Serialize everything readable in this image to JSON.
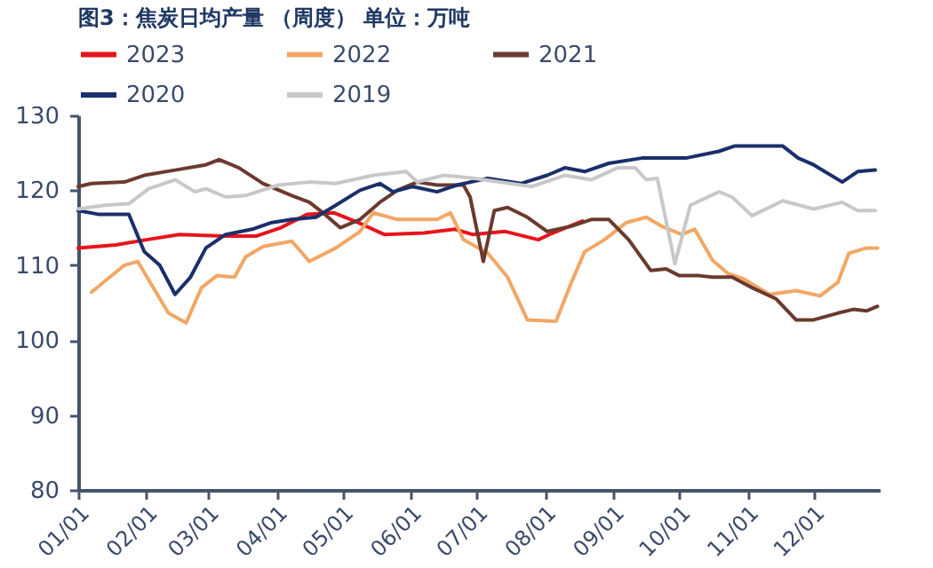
{
  "chart_data": {
    "type": "line",
    "title": "图3：焦炭日均产量 （周度）    单位：万吨",
    "xlim": [
      "--01-01",
      "--12-31"
    ],
    "xticks": [
      {
        "value": "--01-01",
        "label": "01/01"
      },
      {
        "value": "--02-01",
        "label": "02/01"
      },
      {
        "value": "--03-01",
        "label": "03/01"
      },
      {
        "value": "--04-01",
        "label": "04/01"
      },
      {
        "value": "--05-01",
        "label": "05/01"
      },
      {
        "value": "--06-01",
        "label": "06/01"
      },
      {
        "value": "--07-01",
        "label": "07/01"
      },
      {
        "value": "--08-01",
        "label": "08/01"
      },
      {
        "value": "--09-01",
        "label": "09/01"
      },
      {
        "value": "--10-01",
        "label": "10/01"
      },
      {
        "value": "--11-01",
        "label": "11/01"
      },
      {
        "value": "--12-01",
        "label": "12/01"
      }
    ],
    "ylim": [
      80,
      130
    ],
    "yticks": [
      80,
      90,
      100,
      110,
      120,
      130
    ],
    "grid": false,
    "legend": "top",
    "marker": "none",
    "line_style": "solid",
    "series": [
      {
        "name": "2023",
        "color": "#e8141b",
        "x": [
          "--01-01",
          "--01-18",
          "--02-01",
          "--02-16",
          "--03-08",
          "--03-23",
          "--04-03",
          "--04-15",
          "--04-27",
          "--05-08",
          "--05-20",
          "--06-07",
          "--06-21",
          "--06-29",
          "--07-14",
          "--07-29",
          "--08-03",
          "--08-18"
        ],
        "values": [
          112.3,
          112.7,
          113.4,
          114.1,
          113.9,
          113.9,
          115,
          116.8,
          117,
          115.7,
          114.1,
          114.3,
          114.8,
          114.1,
          114.5,
          113.4,
          114.1,
          115.9
        ]
      },
      {
        "name": "2022",
        "color": "#f2a765",
        "x": [
          "--01-07",
          "--01-22",
          "--01-28",
          "--02-11",
          "--02-19",
          "--02-26",
          "--03-05",
          "--03-13",
          "--03-18",
          "--03-26",
          "--04-08",
          "--04-16",
          "--04-28",
          "--05-09",
          "--05-15",
          "--05-26",
          "--06-13",
          "--06-19",
          "--06-25",
          "--07-06",
          "--07-15",
          "--07-24",
          "--08-06",
          "--08-13",
          "--08-19",
          "--08-28",
          "--09-07",
          "--09-16",
          "--09-23",
          "--10-02",
          "--10-08",
          "--10-16",
          "--10-23",
          "--10-30",
          "--11-11",
          "--11-23",
          "--12-04",
          "--12-12",
          "--12-17",
          "--12-25",
          "--12-30"
        ],
        "values": [
          106.4,
          110,
          110.5,
          103.6,
          102.3,
          107,
          108.6,
          108.4,
          111.1,
          112.5,
          113.2,
          110.5,
          112.3,
          114.5,
          117,
          116.1,
          116.1,
          117,
          113.4,
          111.6,
          108.4,
          102.7,
          102.5,
          107.7,
          111.8,
          113.4,
          115.7,
          116.4,
          115.2,
          114.1,
          114.8,
          110.7,
          108.9,
          108.2,
          106.1,
          106.6,
          105.9,
          107.7,
          111.6,
          112.3,
          112.3
        ]
      },
      {
        "name": "2021",
        "color": "#6b3a2e",
        "x": [
          "--01-01",
          "--01-07",
          "--01-22",
          "--01-31",
          "--02-14",
          "--02-28",
          "--03-06",
          "--03-15",
          "--03-26",
          "--04-08",
          "--04-16",
          "--04-23",
          "--04-30",
          "--05-09",
          "--05-18",
          "--05-26",
          "--06-04",
          "--06-13",
          "--06-25",
          "--06-28",
          "--07-04",
          "--07-09",
          "--07-15",
          "--07-24",
          "--08-02",
          "--08-13",
          "--08-22",
          "--08-30",
          "--09-08",
          "--09-18",
          "--09-25",
          "--10-01",
          "--10-10",
          "--10-16",
          "--10-25",
          "--11-03",
          "--11-14",
          "--11-23",
          "--12-01",
          "--12-12",
          "--12-19",
          "--12-25",
          "--12-30"
        ],
        "values": [
          120.5,
          120.9,
          121.1,
          122,
          122.7,
          123.4,
          124.1,
          123,
          120.9,
          119.3,
          118.4,
          116.8,
          115,
          116.1,
          118.4,
          120,
          121.1,
          120.7,
          120.7,
          119.1,
          110.5,
          117.3,
          117.7,
          116.4,
          114.5,
          115.2,
          116.1,
          116.1,
          113.4,
          109.3,
          109.5,
          108.6,
          108.6,
          108.4,
          108.4,
          107,
          105.5,
          102.7,
          102.7,
          103.6,
          104.1,
          103.9,
          104.5
        ]
      },
      {
        "name": "2020",
        "color": "#1a2f6b",
        "x": [
          "--01-01",
          "--01-10",
          "--01-24",
          "--01-31",
          "--02-07",
          "--02-14",
          "--02-21",
          "--02-28",
          "--03-09",
          "--03-21",
          "--03-30",
          "--04-08",
          "--04-19",
          "--04-28",
          "--05-09",
          "--05-18",
          "--05-24",
          "--06-02",
          "--06-13",
          "--06-22",
          "--07-06",
          "--07-21",
          "--08-02",
          "--08-10",
          "--08-19",
          "--08-30",
          "--09-14",
          "--10-04",
          "--10-19",
          "--10-26",
          "--11-17",
          "--11-24",
          "--12-01",
          "--12-14",
          "--12-21",
          "--12-29"
        ],
        "values": [
          117.3,
          116.8,
          116.8,
          111.8,
          110,
          106.1,
          108.4,
          112.3,
          114.1,
          114.8,
          115.7,
          116.1,
          116.4,
          118,
          120,
          120.9,
          119.8,
          120.5,
          119.8,
          120.7,
          121.6,
          120.9,
          122,
          123,
          122.5,
          123.6,
          124.3,
          124.3,
          125.2,
          125.9,
          125.9,
          124.3,
          123.4,
          121.1,
          122.5,
          122.7
        ]
      },
      {
        "name": "2019",
        "color": "#c8c8c8",
        "x": [
          "--01-01",
          "--01-13",
          "--01-24",
          "--02-02",
          "--02-14",
          "--02-23",
          "--02-28",
          "--03-09",
          "--03-18",
          "--04-02",
          "--04-16",
          "--04-28",
          "--05-15",
          "--05-30",
          "--06-04",
          "--06-16",
          "--06-30",
          "--07-26",
          "--08-10",
          "--08-22",
          "--09-03",
          "--09-11",
          "--09-16",
          "--09-21",
          "--09-29",
          "--10-06",
          "--10-19",
          "--10-25",
          "--11-03",
          "--11-17",
          "--12-01",
          "--12-14",
          "--12-21",
          "--12-29"
        ],
        "values": [
          117.5,
          118,
          118.2,
          120.2,
          121.4,
          119.8,
          120.2,
          119.1,
          119.3,
          120.7,
          121.1,
          120.9,
          122,
          122.5,
          121.1,
          122,
          121.6,
          120.5,
          122,
          121.4,
          123,
          123,
          121.4,
          121.6,
          110.2,
          118,
          119.8,
          119.1,
          116.6,
          118.6,
          117.5,
          118.4,
          117.3,
          117.3
        ]
      }
    ]
  }
}
